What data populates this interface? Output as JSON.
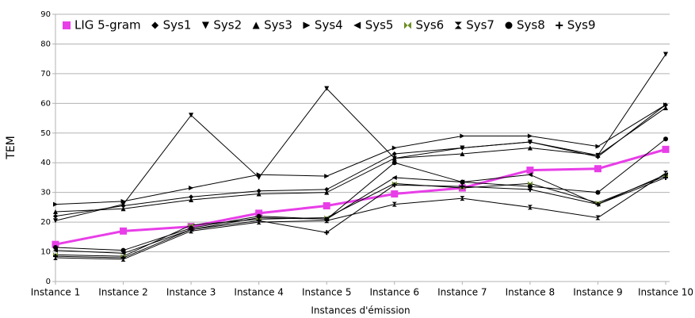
{
  "chart_data": {
    "type": "line",
    "categories": [
      "Instance 1",
      "Instance 2",
      "Instance 3",
      "Instance 4",
      "Instance 5",
      "Instance 6",
      "Instance 7",
      "Instance 8",
      "Instance 9",
      "Instance 10"
    ],
    "series": [
      {
        "name": "LIG 5-gram",
        "color": "#e83ee8",
        "values": [
          12.5,
          17,
          18.5,
          23,
          25.5,
          29.5,
          31.5,
          37.5,
          38,
          44.5
        ]
      },
      {
        "name": "Sys1",
        "color": "#000000",
        "values": [
          22,
          25.5,
          28.5,
          30.5,
          31,
          43,
          45,
          47,
          42,
          59.5
        ]
      },
      {
        "name": "Sys2",
        "color": "#000000",
        "values": [
          20.5,
          26,
          56,
          35,
          65,
          41.5,
          45,
          47,
          42.5,
          76.5
        ]
      },
      {
        "name": "Sys3",
        "color": "#000000",
        "values": [
          23.5,
          24.5,
          27.5,
          29.5,
          30,
          41.5,
          43,
          45,
          42.5,
          58.5
        ]
      },
      {
        "name": "Sys4",
        "color": "#000000",
        "values": [
          26,
          27,
          31.5,
          36,
          35.5,
          45,
          49,
          49,
          45.5,
          59.5
        ]
      },
      {
        "name": "Sys5",
        "color": "#000000",
        "values": [
          10.5,
          9.5,
          17.5,
          21.5,
          21,
          35,
          33.5,
          36,
          26,
          36
        ]
      },
      {
        "name": "Sys6",
        "color": "#6b8e23",
        "values": [
          9,
          8.5,
          19,
          21,
          21.5,
          33,
          31.5,
          33,
          26.5,
          35.5
        ]
      },
      {
        "name": "Sys7",
        "color": "#000000",
        "values": [
          8,
          7.5,
          17,
          20,
          20.5,
          26,
          28,
          25,
          21.5,
          36.5
        ]
      },
      {
        "name": "Sys8",
        "color": "#000000",
        "values": [
          11.5,
          10.5,
          18,
          22,
          21,
          40,
          33.5,
          32,
          30,
          48
        ]
      },
      {
        "name": "Sys9",
        "color": "#000000",
        "values": [
          8.5,
          8,
          17.5,
          20.5,
          16.5,
          32.5,
          32,
          31,
          26,
          35
        ]
      }
    ],
    "xlabel": "Instances d'émission",
    "ylabel": "TEM",
    "ylim": [
      0,
      90
    ],
    "yticks": [
      0,
      10,
      20,
      30,
      40,
      50,
      60,
      70,
      80,
      90
    ],
    "grid": true,
    "legend": "top"
  }
}
